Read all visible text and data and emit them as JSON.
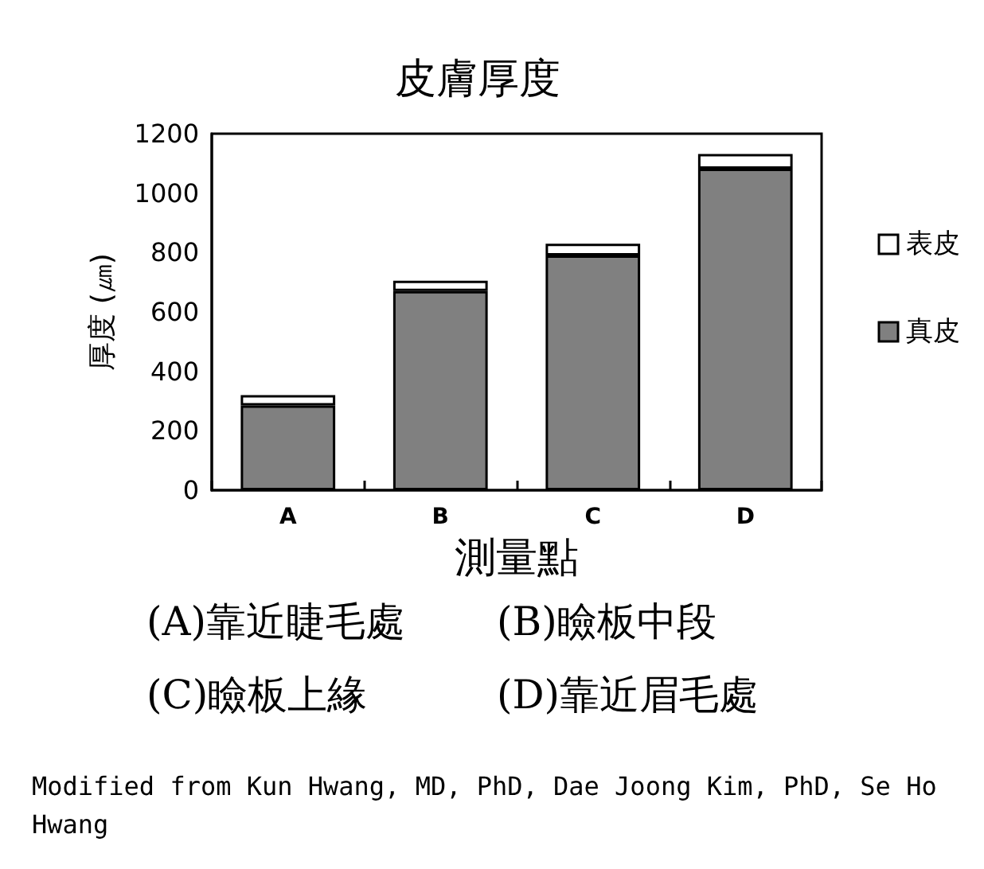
{
  "chart_data": {
    "type": "bar",
    "title": "皮膚厚度",
    "xlabel": "測量點",
    "ylabel": "厚度 (㎛)",
    "categories": [
      "A",
      "B",
      "C",
      "D"
    ],
    "series": [
      {
        "name": "真皮",
        "color": "#808080",
        "values": [
          285,
          670,
          790,
          1082
        ]
      },
      {
        "name": "表皮",
        "color": "#ffffff",
        "values": [
          35,
          35,
          40,
          50
        ]
      }
    ],
    "stacked": true,
    "ylim": [
      0,
      1200
    ],
    "yticks": [
      0,
      200,
      400,
      600,
      800,
      1000,
      1200
    ],
    "grid": false,
    "legend": "right",
    "annotations": [
      "(A)靠近睫毛處",
      "(B)瞼板中段",
      "(C)瞼板上緣",
      "(D)靠近眉毛處",
      "Modified from Kun Hwang, MD, PhD, Dae Joong Kim, PhD, Se Ho Hwang"
    ]
  }
}
